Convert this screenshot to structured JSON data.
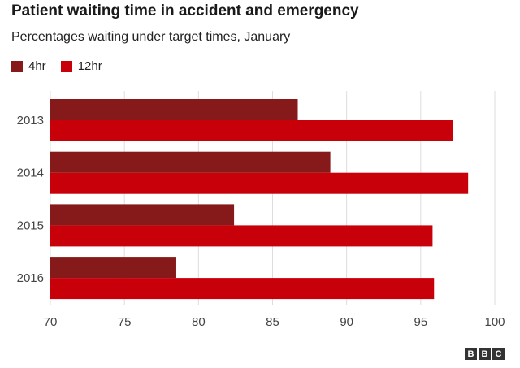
{
  "colors": {
    "series_4hr": "#861a1a",
    "series_12hr": "#c8000a",
    "grid": "#dddddd",
    "axis_text": "#444444"
  },
  "chart_data": {
    "type": "bar",
    "orientation": "horizontal",
    "title": "Patient waiting time in accident and emergency",
    "subtitle": "Percentages waiting under target times, January",
    "categories": [
      "2013",
      "2014",
      "2015",
      "2016"
    ],
    "series": [
      {
        "name": "4hr",
        "values": [
          86.7,
          88.9,
          82.4,
          78.5
        ]
      },
      {
        "name": "12hr",
        "values": [
          97.2,
          98.2,
          95.8,
          95.9
        ]
      }
    ],
    "xlim": [
      70,
      100
    ],
    "xticks": [
      "70",
      "75",
      "80",
      "85",
      "90",
      "95",
      "100"
    ],
    "grid": true,
    "legend_position": "top-left"
  },
  "logo": {
    "letters": [
      "B",
      "B",
      "C"
    ]
  }
}
